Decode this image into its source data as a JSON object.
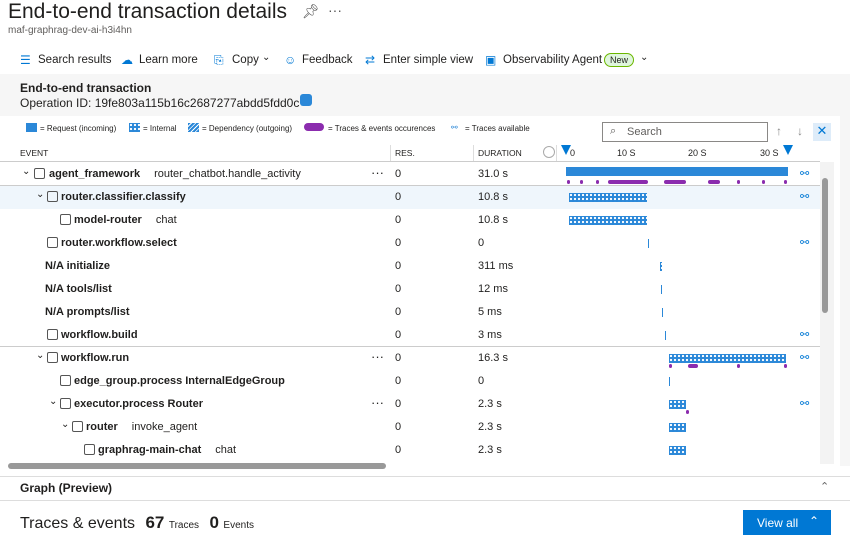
{
  "header": {
    "title": "End-to-end transaction details",
    "subtitle": "maf-graphrag-dev-ai-h3i4hn"
  },
  "toolbar": [
    {
      "label": "Search results"
    },
    {
      "label": "Learn more"
    },
    {
      "label": "Copy"
    },
    {
      "label": "Feedback"
    },
    {
      "label": "Enter simple view"
    },
    {
      "label": "Observability Agent",
      "badge": "New"
    }
  ],
  "transaction": {
    "title": "End-to-end transaction",
    "operation_id": "Operation ID: 19fe803a115b16c2687277abdd5fdd0c"
  },
  "legend": [
    "= Request (incoming)",
    "= Internal",
    "= Dependency (outgoing)",
    "= Traces & events occurences",
    "= Traces available"
  ],
  "search_placeholder": "Search",
  "columns": {
    "event": "EVENT",
    "res": "RES.",
    "duration": "DURATION"
  },
  "timeline_ticks": [
    "0",
    "10 S",
    "20 S",
    "30 S"
  ],
  "rows": [
    {
      "name": "agent_framework",
      "detail": "router_chatbot.handle_activity",
      "res": "0",
      "duration": "31.0 s"
    },
    {
      "name": "router.classifier.classify",
      "res": "0",
      "duration": "10.8 s"
    },
    {
      "name": "model-router",
      "detail": "chat",
      "res": "0",
      "duration": "10.8 s"
    },
    {
      "name": "router.workflow.select",
      "res": "0",
      "duration": "0"
    },
    {
      "name": "N/A initialize",
      "res": "0",
      "duration": "311 ms"
    },
    {
      "name": "N/A tools/list",
      "res": "0",
      "duration": "12 ms"
    },
    {
      "name": "N/A prompts/list",
      "res": "0",
      "duration": "5 ms"
    },
    {
      "name": "workflow.build",
      "res": "0",
      "duration": "3 ms"
    },
    {
      "name": "workflow.run",
      "res": "0",
      "duration": "16.3 s"
    },
    {
      "name": "edge_group.process InternalEdgeGroup",
      "res": "0",
      "duration": "0"
    },
    {
      "name": "executor.process Router",
      "res": "0",
      "duration": "2.3 s"
    },
    {
      "name": "router",
      "detail": "invoke_agent",
      "res": "0",
      "duration": "2.3 s"
    },
    {
      "name": "graphrag-main-chat",
      "detail": "chat",
      "res": "0",
      "duration": "2.3 s"
    }
  ],
  "graph_title": "Graph (Preview)",
  "footer": {
    "title": "Traces & events",
    "traces_count": "67",
    "traces_label": "Traces",
    "events_count": "0",
    "events_label": "Events",
    "button": "View all"
  }
}
